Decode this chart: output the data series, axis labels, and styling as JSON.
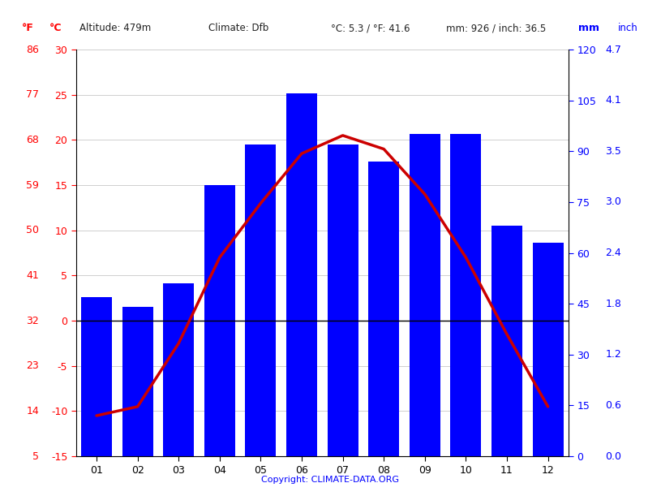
{
  "months": [
    "01",
    "02",
    "03",
    "04",
    "05",
    "06",
    "07",
    "08",
    "09",
    "10",
    "11",
    "12"
  ],
  "temperature_c": [
    -10.5,
    -9.5,
    -2.5,
    7.0,
    13.0,
    18.5,
    20.5,
    19.0,
    14.0,
    7.0,
    -1.5,
    -9.5
  ],
  "precipitation_mm": [
    47,
    44,
    51,
    80,
    92,
    107,
    92,
    87,
    95,
    95,
    68,
    63
  ],
  "bar_color": "#0000ff",
  "line_color": "#cc0000",
  "bar_width": 0.75,
  "left_f_ticks": [
    86,
    77,
    68,
    59,
    50,
    41,
    32,
    23,
    14,
    5
  ],
  "left_c_ticks": [
    30,
    25,
    20,
    15,
    10,
    5,
    0,
    -5,
    -10,
    -15
  ],
  "right_mm_ticks": [
    120,
    105,
    90,
    75,
    60,
    45,
    30,
    15,
    0
  ],
  "right_inch_ticks": [
    "4.7",
    "4.1",
    "3.5",
    "3.0",
    "2.4",
    "1.8",
    "1.2",
    "0.6",
    "0.0"
  ],
  "ylim_c": [
    -15,
    30
  ],
  "copyright_text": "Copyright: CLIMATE-DATA.ORG",
  "bg_color": "#ffffff",
  "grid_color": "#c8c8c8",
  "zero_line_color": "#000000",
  "c_min": -15,
  "c_max": 30,
  "mm_min": 0,
  "mm_max": 120
}
